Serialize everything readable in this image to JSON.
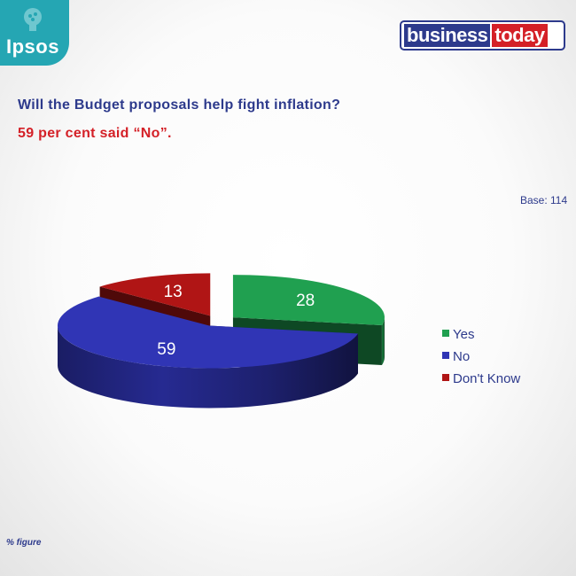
{
  "header": {
    "ipsos_logo_text": "Ipsos",
    "business_today_logo": {
      "part1": "business",
      "part2": "today"
    }
  },
  "question": "Will the Budget proposals help fight inflation?",
  "subhead": "59 per cent said “No”.",
  "base_label": "Base: 114",
  "footnote": "% figure",
  "colors": {
    "yes": "#20a050",
    "no": "#3035b5",
    "dont_know": "#b01515",
    "navy": "#2d3a8c",
    "red": "#d42027",
    "teal": "#25a6b3"
  },
  "chart_data": {
    "type": "pie",
    "title": "",
    "categories": [
      "Yes",
      "No",
      "Don't Know"
    ],
    "values": [
      28,
      59,
      13
    ],
    "labels": [
      "28",
      "59",
      "13"
    ],
    "exploded": true,
    "three_d": true,
    "legend_placement": "right"
  }
}
